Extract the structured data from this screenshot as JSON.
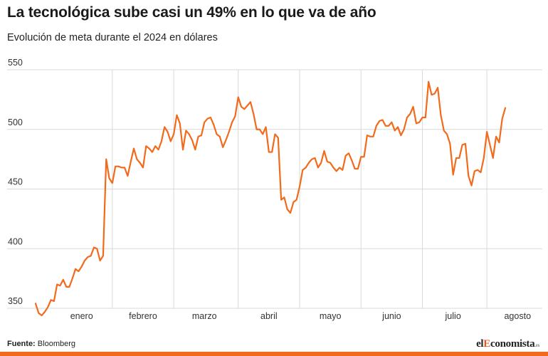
{
  "header": {
    "title": "La tecnológica sube casi un 49% en lo que va de año",
    "subtitle": "Evolución de meta durante el 2024 en dólares"
  },
  "footer": {
    "source_label": "Fuente:",
    "source_value": "Bloomberg",
    "brand_prefix": "el",
    "brand_e": "E",
    "brand_rest": "conomista",
    "brand_suffix": ".es"
  },
  "colors": {
    "line": "#f26a1b",
    "grid": "#d9d9d9",
    "bar": "#f26a1b"
  },
  "chart_data": {
    "type": "line",
    "title": "La tecnológica sube casi un 49% en lo que va de año",
    "subtitle": "Evolución de meta durante el 2024 en dólares",
    "xlabel": "",
    "ylabel": "",
    "ylim": [
      350,
      550
    ],
    "yticks": [
      350,
      400,
      450,
      500,
      550
    ],
    "month_labels": [
      "enero",
      "febrero",
      "marzo",
      "abril",
      "mayo",
      "junio",
      "julio",
      "agosto"
    ],
    "month_label_positions": [
      15,
      35,
      55,
      76,
      96,
      116,
      136,
      157
    ],
    "month_boundaries": [
      25,
      45,
      66,
      86,
      106,
      126,
      147,
      167
    ],
    "grid": true,
    "legend": "none",
    "series": [
      {
        "values": [
          354,
          346,
          344,
          347,
          351,
          357,
          356,
          370,
          369,
          374,
          368,
          368,
          375,
          383,
          381,
          385,
          390,
          393,
          394,
          401,
          400,
          390,
          394,
          475,
          459,
          455,
          469,
          469,
          468,
          468,
          461,
          473,
          484,
          475,
          472,
          468,
          486,
          484,
          481,
          486,
          483,
          490,
          502,
          498,
          490,
          496,
          512,
          505,
          483,
          499,
          496,
          491,
          483,
          494,
          495,
          506,
          509,
          510,
          504,
          496,
          494,
          485,
          491,
          498,
          506,
          511,
          527,
          519,
          517,
          520,
          523,
          513,
          500,
          500,
          496,
          502,
          481,
          481,
          496,
          493,
          441,
          443,
          433,
          430,
          439,
          441,
          452,
          466,
          468,
          472,
          475,
          476,
          468,
          472,
          482,
          473,
          472,
          468,
          465,
          468,
          466,
          478,
          480,
          474,
          467,
          467,
          477,
          477,
          495,
          494,
          494,
          503,
          507,
          508,
          503,
          503,
          506,
          499,
          502,
          495,
          500,
          510,
          513,
          519,
          505,
          506,
          510,
          510,
          540,
          529,
          530,
          535,
          512,
          499,
          496,
          488,
          462,
          476,
          476,
          487,
          488,
          461,
          453,
          465,
          466,
          464,
          476,
          498,
          487,
          476,
          494,
          489,
          509,
          518
        ]
      }
    ]
  }
}
